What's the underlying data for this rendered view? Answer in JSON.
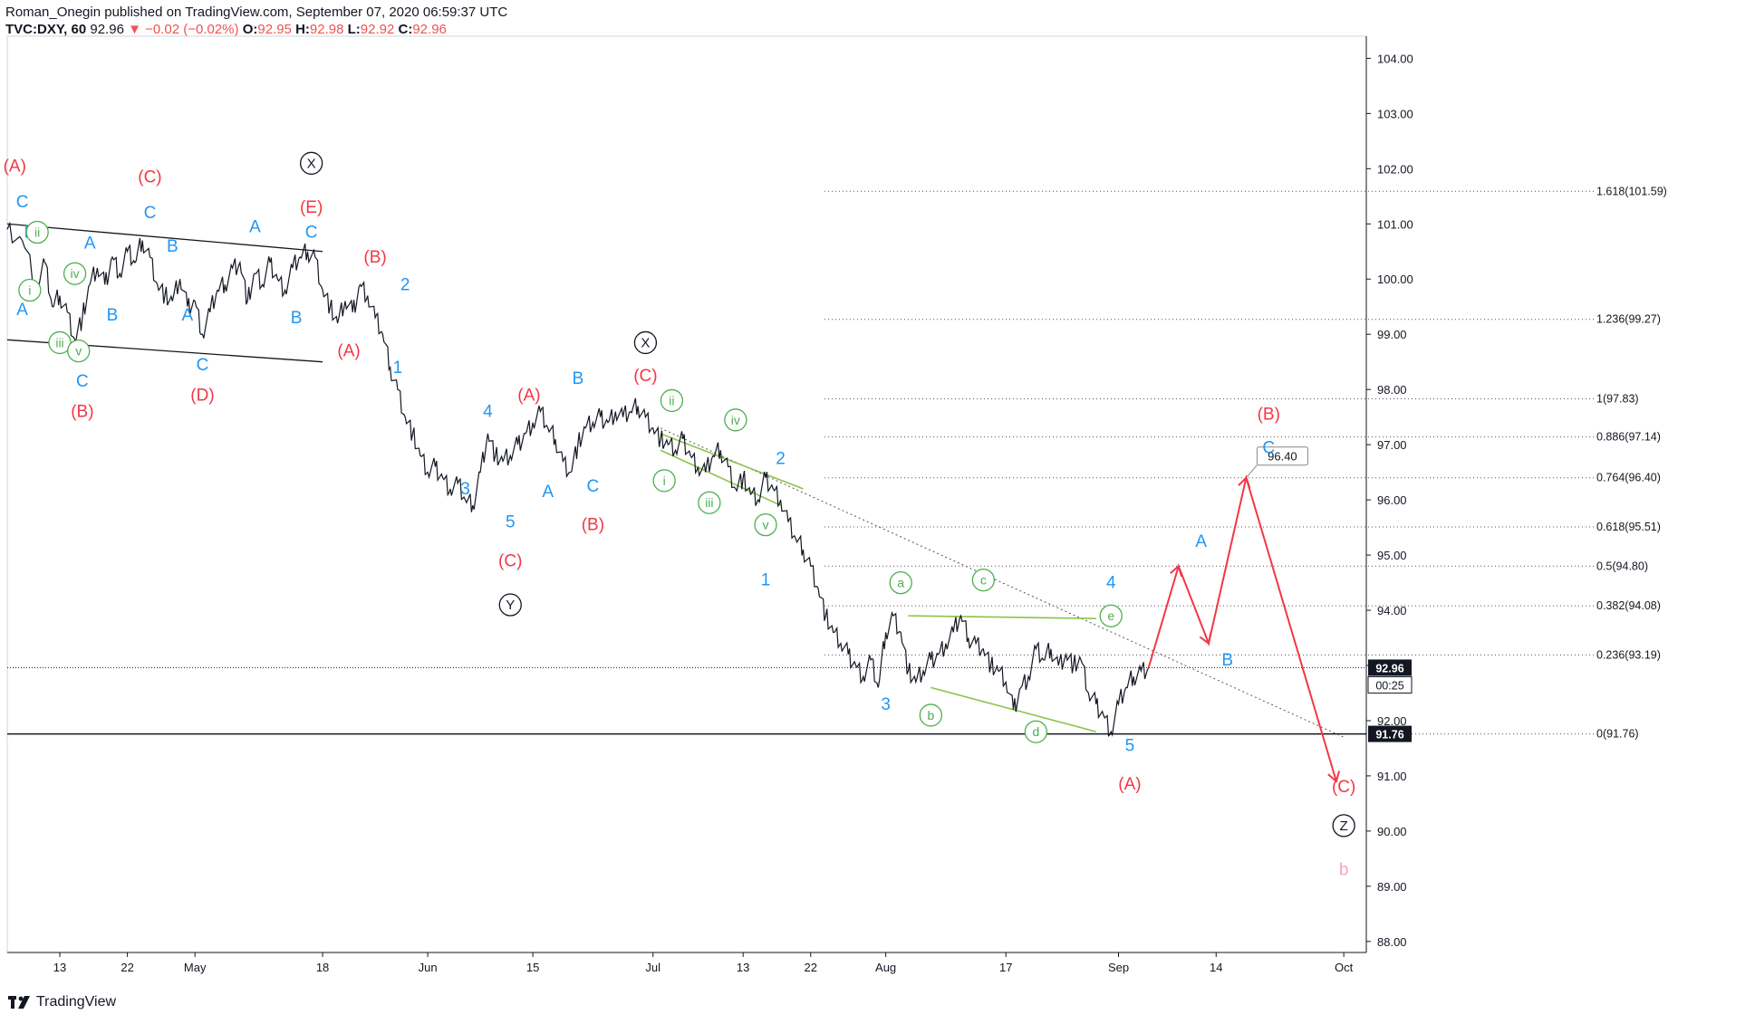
{
  "header": {
    "publisher_line": "Roman_Onegin published on TradingView.com, September 07, 2020 06:59:37 UTC",
    "symbol": "TVC:DXY, 60",
    "last": "92.96",
    "change": "▼ −0.02 (−0.02%)",
    "o_label": "O:",
    "o_val": "92.95",
    "h_label": "H:",
    "h_val": "92.98",
    "l_label": "L:",
    "l_val": "92.92",
    "c_label": "C:",
    "c_val": "92.96"
  },
  "footer": {
    "brand": "TradingView"
  },
  "colors": {
    "red": "#f23645",
    "blue": "#2196f3",
    "green": "#4caf50",
    "black": "#131722",
    "pink": "#f8a5b5"
  },
  "chart_data": {
    "type": "line",
    "symbol": "TVC:DXY",
    "interval": "60",
    "ylim": [
      87.8,
      104.4
    ],
    "y_ticks": [
      "104.00",
      "103.00",
      "102.00",
      "101.00",
      "100.00",
      "99.00",
      "98.00",
      "97.00",
      "96.00",
      "95.00",
      "94.00",
      "93.00",
      "92.00",
      "91.00",
      "90.00",
      "89.00",
      "88.00"
    ],
    "x_ticks": [
      "13",
      "22",
      "May",
      "18",
      "Jun",
      "15",
      "Jul",
      "13",
      "22",
      "Aug",
      "17",
      "Sep",
      "14",
      "Oct"
    ],
    "x_tick_days": [
      13,
      22,
      31,
      48,
      62,
      76,
      92,
      104,
      113,
      123,
      139,
      154,
      167,
      184
    ],
    "x_range_days": [
      6,
      187
    ],
    "grid": false,
    "price_line": {
      "value": 92.96,
      "label": "92.96",
      "countdown": "00:25"
    },
    "support_line": {
      "value": 91.76,
      "label": "91.76"
    },
    "target_label": "96.40",
    "fib_levels": [
      {
        "label": "1.618(101.59)",
        "value": 101.59
      },
      {
        "label": "1.236(99.27)",
        "value": 99.27
      },
      {
        "label": "1(97.83)",
        "value": 97.83
      },
      {
        "label": "0.886(97.14)",
        "value": 97.14
      },
      {
        "label": "0.764(96.40)",
        "value": 96.4
      },
      {
        "label": "0.618(95.51)",
        "value": 95.51
      },
      {
        "label": "0.5(94.80)",
        "value": 94.8
      },
      {
        "label": "0.382(94.08)",
        "value": 94.08
      },
      {
        "label": "0.236(93.19)",
        "value": 93.19
      },
      {
        "label": "0(91.76)",
        "value": 91.76
      }
    ],
    "price_path": [
      [
        6,
        100.9
      ],
      [
        8,
        100.7
      ],
      [
        10,
        99.9
      ],
      [
        11,
        100.3
      ],
      [
        12,
        99.5
      ],
      [
        13,
        99.7
      ],
      [
        14,
        99.4
      ],
      [
        15,
        98.9
      ],
      [
        16,
        99.3
      ],
      [
        17,
        99.9
      ],
      [
        18,
        100.2
      ],
      [
        19,
        99.9
      ],
      [
        20,
        100.4
      ],
      [
        21,
        100.1
      ],
      [
        22,
        100.5
      ],
      [
        23,
        100.3
      ],
      [
        24,
        100.7
      ],
      [
        25,
        100.4
      ],
      [
        26,
        99.9
      ],
      [
        27,
        99.7
      ],
      [
        28,
        99.6
      ],
      [
        29,
        100.0
      ],
      [
        30,
        99.5
      ],
      [
        31,
        99.6
      ],
      [
        32,
        99.0
      ],
      [
        33,
        99.4
      ],
      [
        34,
        99.8
      ],
      [
        35,
        99.9
      ],
      [
        36,
        100.2
      ],
      [
        37,
        100.3
      ],
      [
        38,
        99.6
      ],
      [
        39,
        100.1
      ],
      [
        40,
        99.9
      ],
      [
        41,
        100.3
      ],
      [
        42,
        100.0
      ],
      [
        43,
        99.8
      ],
      [
        44,
        100.2
      ],
      [
        45,
        100.4
      ],
      [
        46,
        100.5
      ],
      [
        47,
        100.4
      ],
      [
        48,
        99.8
      ],
      [
        49,
        99.5
      ],
      [
        50,
        99.2
      ],
      [
        51,
        99.6
      ],
      [
        52,
        99.4
      ],
      [
        53,
        99.9
      ],
      [
        54,
        99.7
      ],
      [
        55,
        99.3
      ],
      [
        56,
        99.0
      ],
      [
        57,
        98.4
      ],
      [
        58,
        98.0
      ],
      [
        59,
        97.5
      ],
      [
        60,
        97.2
      ],
      [
        61,
        96.8
      ],
      [
        62,
        96.5
      ],
      [
        63,
        96.6
      ],
      [
        64,
        96.4
      ],
      [
        65,
        96.2
      ],
      [
        66,
        96.3
      ],
      [
        67,
        96.0
      ],
      [
        68,
        95.9
      ],
      [
        69,
        96.5
      ],
      [
        70,
        97.2
      ],
      [
        71,
        96.8
      ],
      [
        72,
        96.7
      ],
      [
        73,
        96.8
      ],
      [
        74,
        97.0
      ],
      [
        75,
        97.2
      ],
      [
        76,
        97.4
      ],
      [
        77,
        97.6
      ],
      [
        78,
        97.3
      ],
      [
        79,
        97.1
      ],
      [
        80,
        96.7
      ],
      [
        81,
        96.5
      ],
      [
        82,
        97.0
      ],
      [
        83,
        97.3
      ],
      [
        84,
        97.4
      ],
      [
        85,
        97.5
      ],
      [
        86,
        97.4
      ],
      [
        87,
        97.6
      ],
      [
        88,
        97.5
      ],
      [
        89,
        97.6
      ],
      [
        90,
        97.7
      ],
      [
        91,
        97.5
      ],
      [
        92,
        97.3
      ],
      [
        93,
        97.1
      ],
      [
        94,
        97.0
      ],
      [
        95,
        96.9
      ],
      [
        96,
        97.1
      ],
      [
        97,
        96.8
      ],
      [
        98,
        96.6
      ],
      [
        99,
        96.5
      ],
      [
        100,
        96.8
      ],
      [
        101,
        96.9
      ],
      [
        102,
        96.6
      ],
      [
        103,
        96.2
      ],
      [
        104,
        96.4
      ],
      [
        105,
        96.1
      ],
      [
        106,
        96.0
      ],
      [
        107,
        96.4
      ],
      [
        108,
        96.2
      ],
      [
        109,
        96.0
      ],
      [
        110,
        95.6
      ],
      [
        111,
        95.3
      ],
      [
        112,
        95.1
      ],
      [
        113,
        94.8
      ],
      [
        114,
        94.4
      ],
      [
        115,
        93.9
      ],
      [
        116,
        93.6
      ],
      [
        117,
        93.4
      ],
      [
        118,
        93.2
      ],
      [
        119,
        93.0
      ],
      [
        120,
        92.8
      ],
      [
        121,
        93.1
      ],
      [
        122,
        92.6
      ],
      [
        123,
        93.6
      ],
      [
        124,
        93.9
      ],
      [
        125,
        93.6
      ],
      [
        126,
        92.9
      ],
      [
        127,
        92.7
      ],
      [
        128,
        92.9
      ],
      [
        129,
        93.1
      ],
      [
        130,
        93.2
      ],
      [
        131,
        93.4
      ],
      [
        132,
        93.6
      ],
      [
        133,
        93.9
      ],
      [
        134,
        93.5
      ],
      [
        135,
        93.4
      ],
      [
        136,
        93.3
      ],
      [
        137,
        93.0
      ],
      [
        138,
        92.9
      ],
      [
        139,
        92.7
      ],
      [
        140,
        92.2
      ],
      [
        141,
        92.6
      ],
      [
        142,
        92.8
      ],
      [
        143,
        93.3
      ],
      [
        144,
        93.1
      ],
      [
        145,
        93.3
      ],
      [
        146,
        93.0
      ],
      [
        147,
        93.2
      ],
      [
        148,
        93.0
      ],
      [
        149,
        93.1
      ],
      [
        150,
        92.5
      ],
      [
        151,
        92.3
      ],
      [
        152,
        92.1
      ],
      [
        153,
        91.8
      ],
      [
        154,
        92.3
      ],
      [
        155,
        92.6
      ],
      [
        156,
        92.8
      ],
      [
        157,
        92.9
      ],
      [
        158,
        92.96
      ]
    ],
    "trend_lines": [
      {
        "from": [
          6,
          101.0
        ],
        "to": [
          48,
          100.5
        ],
        "color": "black"
      },
      {
        "from": [
          6,
          98.9
        ],
        "to": [
          48,
          98.5
        ],
        "color": "black"
      },
      {
        "from": [
          93,
          97.3
        ],
        "to": [
          184,
          91.7
        ],
        "color": "dotted"
      },
      {
        "from": [
          93,
          97.2
        ],
        "to": [
          112,
          96.2
        ],
        "color": "green"
      },
      {
        "from": [
          93,
          96.9
        ],
        "to": [
          109,
          95.9
        ],
        "color": "green"
      },
      {
        "from": [
          126,
          93.9
        ],
        "to": [
          151,
          93.85
        ],
        "color": "green"
      },
      {
        "from": [
          129,
          92.6
        ],
        "to": [
          151,
          91.8
        ],
        "color": "green"
      }
    ],
    "projection": {
      "color": "red",
      "path": [
        [
          158,
          92.96
        ],
        [
          162,
          94.8
        ],
        [
          166,
          93.4
        ],
        [
          171,
          96.4
        ],
        [
          183,
          90.9
        ]
      ]
    },
    "labels": [
      {
        "t": "(A)",
        "x": 7,
        "y": 101.95,
        "c": "red"
      },
      {
        "t": "C",
        "x": 8,
        "y": 101.3,
        "c": "blue"
      },
      {
        "t": "B",
        "x": 9,
        "y": 100.75,
        "c": "blue"
      },
      {
        "t": "ii",
        "x": 10,
        "y": 100.75,
        "c": "green",
        "circle": true
      },
      {
        "t": "i",
        "x": 9,
        "y": 99.7,
        "c": "green",
        "circle": true
      },
      {
        "t": "iv",
        "x": 15,
        "y": 100.0,
        "c": "green",
        "circle": true
      },
      {
        "t": "A",
        "x": 8,
        "y": 99.35,
        "c": "blue"
      },
      {
        "t": "A",
        "x": 17,
        "y": 100.55,
        "c": "blue"
      },
      {
        "t": "iii",
        "x": 13,
        "y": 98.75,
        "c": "green",
        "circle": true
      },
      {
        "t": "v",
        "x": 15.5,
        "y": 98.6,
        "c": "green",
        "circle": true
      },
      {
        "t": "B",
        "x": 20,
        "y": 99.25,
        "c": "blue"
      },
      {
        "t": "C",
        "x": 16,
        "y": 98.05,
        "c": "blue"
      },
      {
        "t": "(B)",
        "x": 16,
        "y": 97.5,
        "c": "red"
      },
      {
        "t": "(C)",
        "x": 25,
        "y": 101.75,
        "c": "red"
      },
      {
        "t": "C",
        "x": 25,
        "y": 101.1,
        "c": "blue"
      },
      {
        "t": "B",
        "x": 28,
        "y": 100.5,
        "c": "blue"
      },
      {
        "t": "A",
        "x": 30,
        "y": 99.25,
        "c": "blue"
      },
      {
        "t": "C",
        "x": 32,
        "y": 98.35,
        "c": "blue"
      },
      {
        "t": "(D)",
        "x": 32,
        "y": 97.8,
        "c": "red"
      },
      {
        "t": "A",
        "x": 39,
        "y": 100.85,
        "c": "blue"
      },
      {
        "t": "B",
        "x": 44.5,
        "y": 99.2,
        "c": "blue"
      },
      {
        "t": "X",
        "x": 46.5,
        "y": 102.0,
        "c": "black",
        "circle": true
      },
      {
        "t": "(E)",
        "x": 46.5,
        "y": 101.2,
        "c": "red"
      },
      {
        "t": "C",
        "x": 46.5,
        "y": 100.75,
        "c": "blue"
      },
      {
        "t": "(B)",
        "x": 55,
        "y": 100.3,
        "c": "red"
      },
      {
        "t": "2",
        "x": 59,
        "y": 99.8,
        "c": "blue"
      },
      {
        "t": "(A)",
        "x": 51.5,
        "y": 98.6,
        "c": "red"
      },
      {
        "t": "1",
        "x": 58,
        "y": 98.3,
        "c": "blue"
      },
      {
        "t": "4",
        "x": 70,
        "y": 97.5,
        "c": "blue"
      },
      {
        "t": "3",
        "x": 67,
        "y": 96.1,
        "c": "blue"
      },
      {
        "t": "5",
        "x": 73,
        "y": 95.5,
        "c": "blue"
      },
      {
        "t": "(C)",
        "x": 73,
        "y": 94.8,
        "c": "red"
      },
      {
        "t": "Y",
        "x": 73,
        "y": 94.0,
        "c": "black",
        "circle": true
      },
      {
        "t": "(A)",
        "x": 75.5,
        "y": 97.8,
        "c": "red"
      },
      {
        "t": "A",
        "x": 78,
        "y": 96.05,
        "c": "blue"
      },
      {
        "t": "B",
        "x": 82,
        "y": 98.1,
        "c": "blue"
      },
      {
        "t": "C",
        "x": 84,
        "y": 96.15,
        "c": "blue"
      },
      {
        "t": "(B)",
        "x": 84,
        "y": 95.45,
        "c": "red"
      },
      {
        "t": "X",
        "x": 91,
        "y": 98.75,
        "c": "black",
        "circle": true
      },
      {
        "t": "(C)",
        "x": 91,
        "y": 98.15,
        "c": "red"
      },
      {
        "t": "ii",
        "x": 94.5,
        "y": 97.7,
        "c": "green",
        "circle": true
      },
      {
        "t": "iv",
        "x": 103,
        "y": 97.35,
        "c": "green",
        "circle": true
      },
      {
        "t": "i",
        "x": 93.5,
        "y": 96.25,
        "c": "green",
        "circle": true
      },
      {
        "t": "iii",
        "x": 99.5,
        "y": 95.85,
        "c": "green",
        "circle": true
      },
      {
        "t": "v",
        "x": 107,
        "y": 95.45,
        "c": "green",
        "circle": true
      },
      {
        "t": "2",
        "x": 109,
        "y": 96.65,
        "c": "blue"
      },
      {
        "t": "1",
        "x": 107,
        "y": 94.45,
        "c": "blue"
      },
      {
        "t": "a",
        "x": 125,
        "y": 94.4,
        "c": "green",
        "circle": true
      },
      {
        "t": "c",
        "x": 136,
        "y": 94.45,
        "c": "green",
        "circle": true
      },
      {
        "t": "4",
        "x": 153,
        "y": 94.4,
        "c": "blue"
      },
      {
        "t": "e",
        "x": 153,
        "y": 93.8,
        "c": "green",
        "circle": true
      },
      {
        "t": "3",
        "x": 123,
        "y": 92.2,
        "c": "blue"
      },
      {
        "t": "b",
        "x": 129,
        "y": 92.0,
        "c": "green",
        "circle": true
      },
      {
        "t": "d",
        "x": 143,
        "y": 91.7,
        "c": "green",
        "circle": true
      },
      {
        "t": "5",
        "x": 155.5,
        "y": 91.45,
        "c": "blue"
      },
      {
        "t": "(A)",
        "x": 155.5,
        "y": 90.75,
        "c": "red"
      },
      {
        "t": "A",
        "x": 165,
        "y": 95.15,
        "c": "blue"
      },
      {
        "t": "B",
        "x": 168.5,
        "y": 93.0,
        "c": "blue"
      },
      {
        "t": "(B)",
        "x": 174,
        "y": 97.45,
        "c": "red"
      },
      {
        "t": "C",
        "x": 174,
        "y": 96.85,
        "c": "blue"
      },
      {
        "t": "(C)",
        "x": 184,
        "y": 90.7,
        "c": "red"
      },
      {
        "t": "Z",
        "x": 184,
        "y": 90.0,
        "c": "black",
        "circle": true
      },
      {
        "t": "b",
        "x": 184,
        "y": 89.2,
        "c": "pink"
      }
    ]
  }
}
